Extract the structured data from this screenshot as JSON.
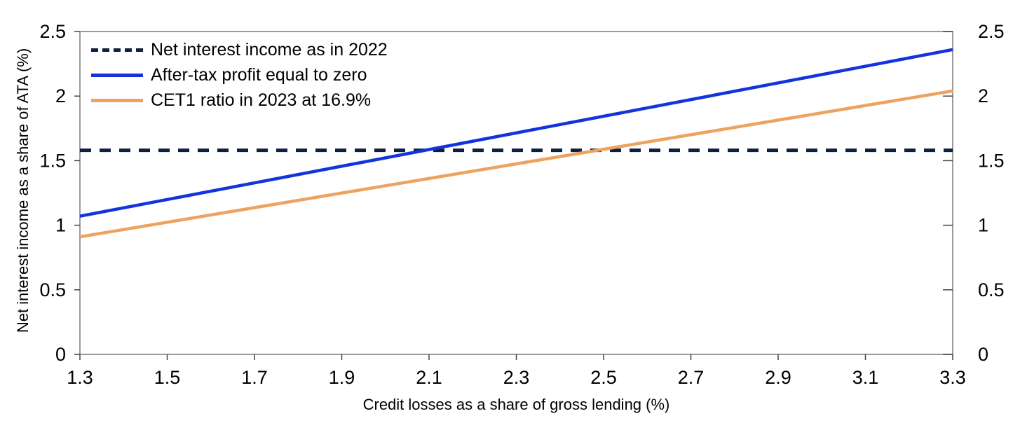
{
  "chart_data": {
    "type": "line",
    "title": "",
    "xlabel": "Credit losses as a share of gross lending (%)",
    "ylabel": "Net interest income as a share of ATA (%)",
    "xlim": [
      1.3,
      3.3
    ],
    "ylim": [
      0,
      2.5
    ],
    "x_ticks": [
      1.3,
      1.5,
      1.7,
      1.9,
      2.1,
      2.3,
      2.5,
      2.7,
      2.9,
      3.1,
      3.3
    ],
    "x_tick_labels": [
      "1.3",
      "1.5",
      "1.7",
      "1.9",
      "2.1",
      "2.3",
      "2.5",
      "2.7",
      "2.9",
      "3.1",
      "3.3"
    ],
    "y_ticks": [
      0,
      0.5,
      1,
      1.5,
      2,
      2.5
    ],
    "y_tick_labels": [
      "0",
      "0.5",
      "1",
      "1.5",
      "2",
      "2.5"
    ],
    "grid": false,
    "legend_position": "top-left",
    "frame_color": "#7a7a7a",
    "tick_color": "#444444",
    "series": [
      {
        "name": "Net interest income as in 2022",
        "color": "#0e2040",
        "style": "dashed",
        "x": [
          1.3,
          3.3
        ],
        "y": [
          1.58,
          1.58
        ]
      },
      {
        "name": "After-tax profit equal to zero",
        "color": "#1334dd",
        "style": "solid",
        "x": [
          1.3,
          3.3
        ],
        "y": [
          1.07,
          2.36
        ]
      },
      {
        "name": "CET1 ratio in 2023 at 16.9%",
        "color": "#eea25f",
        "style": "solid",
        "x": [
          1.3,
          3.3
        ],
        "y": [
          0.91,
          2.04
        ]
      }
    ]
  }
}
